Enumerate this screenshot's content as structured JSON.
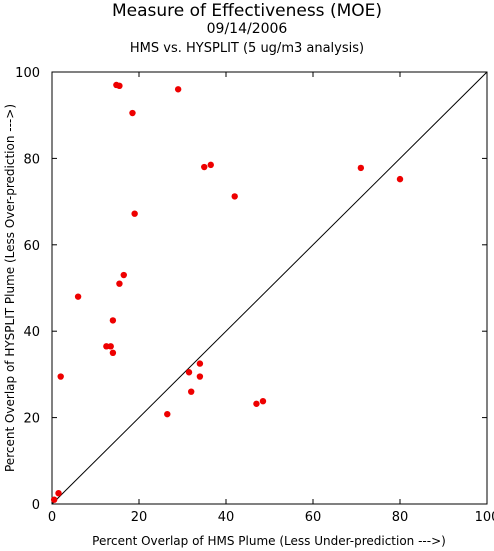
{
  "chart_data": {
    "type": "scatter",
    "title": "Measure of Effectiveness (MOE)",
    "subtitle": "09/14/2006",
    "subtitle2": "HMS vs. HYSPLIT  (5 ug/m3 analysis)",
    "xlabel": "Percent Overlap of HMS Plume (Less Under-prediction --->)",
    "ylabel": "Percent Overlap of HYSPLIT Plume (Less Over-prediction --->)",
    "xlim": [
      0,
      100
    ],
    "ylim": [
      0,
      100
    ],
    "xticks": [
      0,
      20,
      40,
      60,
      80,
      100
    ],
    "yticks": [
      0,
      20,
      40,
      60,
      80,
      100
    ],
    "grid": false,
    "point_color": "#ee0000",
    "reference_line": {
      "from": [
        0,
        0
      ],
      "to": [
        100,
        100
      ],
      "color": "#000000"
    },
    "points": [
      {
        "x": 0.5,
        "y": 1.0
      },
      {
        "x": 1.5,
        "y": 2.5
      },
      {
        "x": 2.0,
        "y": 29.5
      },
      {
        "x": 6.0,
        "y": 48.0
      },
      {
        "x": 12.5,
        "y": 36.5
      },
      {
        "x": 13.5,
        "y": 36.5
      },
      {
        "x": 14.0,
        "y": 42.5
      },
      {
        "x": 14.0,
        "y": 35.0
      },
      {
        "x": 14.8,
        "y": 97.0
      },
      {
        "x": 15.5,
        "y": 96.8
      },
      {
        "x": 15.5,
        "y": 51.0
      },
      {
        "x": 16.5,
        "y": 53.0
      },
      {
        "x": 18.5,
        "y": 90.5
      },
      {
        "x": 19.0,
        "y": 67.2
      },
      {
        "x": 26.5,
        "y": 20.8
      },
      {
        "x": 29.0,
        "y": 96.0
      },
      {
        "x": 31.5,
        "y": 30.5
      },
      {
        "x": 32.0,
        "y": 26.0
      },
      {
        "x": 34.0,
        "y": 32.5
      },
      {
        "x": 34.0,
        "y": 29.5
      },
      {
        "x": 35.0,
        "y": 78.0
      },
      {
        "x": 36.5,
        "y": 78.5
      },
      {
        "x": 42.0,
        "y": 71.2
      },
      {
        "x": 47.0,
        "y": 23.2
      },
      {
        "x": 48.5,
        "y": 23.8
      },
      {
        "x": 71.0,
        "y": 77.8
      },
      {
        "x": 80.0,
        "y": 75.2
      }
    ]
  }
}
